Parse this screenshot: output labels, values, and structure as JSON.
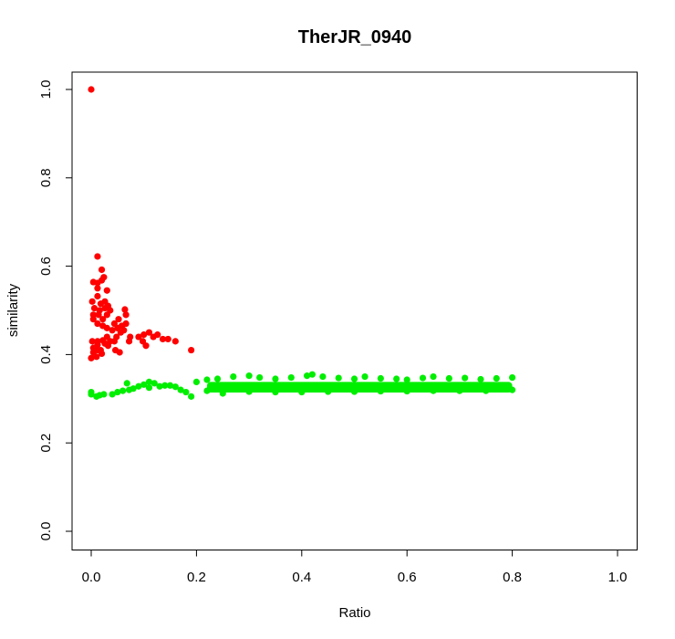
{
  "chart_data": {
    "type": "scatter",
    "title": "TherJR_0940",
    "xlabel": "Ratio",
    "ylabel": "similarity",
    "xlim": [
      0,
      1
    ],
    "ylim": [
      0,
      1
    ],
    "xticks": [
      "0.0",
      "0.2",
      "0.4",
      "0.6",
      "0.8",
      "1.0"
    ],
    "yticks": [
      "0.0",
      "0.2",
      "0.4",
      "0.6",
      "0.8",
      "1.0"
    ],
    "grid": false,
    "legend": "none",
    "series": [
      {
        "color": "#ff0000",
        "points": [
          [
            0.0,
            1.0
          ],
          [
            0.012,
            0.622
          ],
          [
            0.02,
            0.592
          ],
          [
            0.004,
            0.564
          ],
          [
            0.012,
            0.562
          ],
          [
            0.02,
            0.568
          ],
          [
            0.012,
            0.55
          ],
          [
            0.024,
            0.575
          ],
          [
            0.002,
            0.52
          ],
          [
            0.012,
            0.532
          ],
          [
            0.018,
            0.515
          ],
          [
            0.026,
            0.52
          ],
          [
            0.03,
            0.545
          ],
          [
            0.006,
            0.505
          ],
          [
            0.016,
            0.5
          ],
          [
            0.026,
            0.505
          ],
          [
            0.032,
            0.51
          ],
          [
            0.004,
            0.49
          ],
          [
            0.014,
            0.49
          ],
          [
            0.022,
            0.48
          ],
          [
            0.03,
            0.49
          ],
          [
            0.036,
            0.5
          ],
          [
            0.004,
            0.48
          ],
          [
            0.012,
            0.47
          ],
          [
            0.022,
            0.465
          ],
          [
            0.03,
            0.46
          ],
          [
            0.044,
            0.47
          ],
          [
            0.052,
            0.48
          ],
          [
            0.064,
            0.502
          ],
          [
            0.066,
            0.49
          ],
          [
            0.04,
            0.455
          ],
          [
            0.05,
            0.46
          ],
          [
            0.058,
            0.465
          ],
          [
            0.066,
            0.47
          ],
          [
            0.048,
            0.44
          ],
          [
            0.056,
            0.45
          ],
          [
            0.062,
            0.455
          ],
          [
            0.03,
            0.44
          ],
          [
            0.036,
            0.43
          ],
          [
            0.044,
            0.43
          ],
          [
            0.002,
            0.43
          ],
          [
            0.012,
            0.43
          ],
          [
            0.022,
            0.432
          ],
          [
            0.004,
            0.415
          ],
          [
            0.012,
            0.422
          ],
          [
            0.018,
            0.41
          ],
          [
            0.026,
            0.425
          ],
          [
            0.032,
            0.42
          ],
          [
            0.004,
            0.405
          ],
          [
            0.012,
            0.41
          ],
          [
            0.02,
            0.402
          ],
          [
            0.0,
            0.392
          ],
          [
            0.01,
            0.395
          ],
          [
            0.046,
            0.41
          ],
          [
            0.054,
            0.405
          ],
          [
            0.072,
            0.43
          ],
          [
            0.074,
            0.44
          ],
          [
            0.09,
            0.44
          ],
          [
            0.1,
            0.445
          ],
          [
            0.098,
            0.43
          ],
          [
            0.104,
            0.42
          ],
          [
            0.11,
            0.45
          ],
          [
            0.118,
            0.44
          ],
          [
            0.126,
            0.445
          ],
          [
            0.136,
            0.435
          ],
          [
            0.146,
            0.435
          ],
          [
            0.16,
            0.43
          ],
          [
            0.19,
            0.41
          ]
        ]
      },
      {
        "color": "#00ee00",
        "band": {
          "x_from": 0.0,
          "x_to": 0.8,
          "y_center": 0.326,
          "y_spread": 0.012
        },
        "points": [
          [
            0.0,
            0.315
          ],
          [
            0.0,
            0.31
          ],
          [
            0.01,
            0.305
          ],
          [
            0.016,
            0.308
          ],
          [
            0.024,
            0.31
          ],
          [
            0.04,
            0.31
          ],
          [
            0.05,
            0.315
          ],
          [
            0.06,
            0.318
          ],
          [
            0.068,
            0.335
          ],
          [
            0.072,
            0.32
          ],
          [
            0.08,
            0.323
          ],
          [
            0.09,
            0.328
          ],
          [
            0.1,
            0.332
          ],
          [
            0.11,
            0.325
          ],
          [
            0.11,
            0.338
          ],
          [
            0.12,
            0.335
          ],
          [
            0.13,
            0.328
          ],
          [
            0.14,
            0.33
          ],
          [
            0.15,
            0.33
          ],
          [
            0.16,
            0.327
          ],
          [
            0.17,
            0.32
          ],
          [
            0.18,
            0.315
          ],
          [
            0.19,
            0.305
          ],
          [
            0.2,
            0.338
          ],
          [
            0.22,
            0.343
          ],
          [
            0.24,
            0.345
          ],
          [
            0.27,
            0.35
          ],
          [
            0.3,
            0.352
          ],
          [
            0.32,
            0.348
          ],
          [
            0.35,
            0.345
          ],
          [
            0.38,
            0.348
          ],
          [
            0.41,
            0.352
          ],
          [
            0.42,
            0.355
          ],
          [
            0.44,
            0.35
          ],
          [
            0.47,
            0.347
          ],
          [
            0.5,
            0.345
          ],
          [
            0.52,
            0.35
          ],
          [
            0.55,
            0.346
          ],
          [
            0.58,
            0.345
          ],
          [
            0.6,
            0.343
          ],
          [
            0.63,
            0.347
          ],
          [
            0.65,
            0.35
          ],
          [
            0.68,
            0.346
          ],
          [
            0.71,
            0.347
          ],
          [
            0.74,
            0.344
          ],
          [
            0.77,
            0.346
          ],
          [
            0.8,
            0.348
          ],
          [
            0.8,
            0.32
          ],
          [
            0.75,
            0.318
          ],
          [
            0.7,
            0.318
          ],
          [
            0.65,
            0.318
          ],
          [
            0.6,
            0.317
          ],
          [
            0.55,
            0.317
          ],
          [
            0.5,
            0.316
          ],
          [
            0.45,
            0.316
          ],
          [
            0.4,
            0.315
          ],
          [
            0.35,
            0.315
          ],
          [
            0.3,
            0.316
          ],
          [
            0.25,
            0.312
          ],
          [
            0.22,
            0.318
          ]
        ]
      }
    ]
  }
}
